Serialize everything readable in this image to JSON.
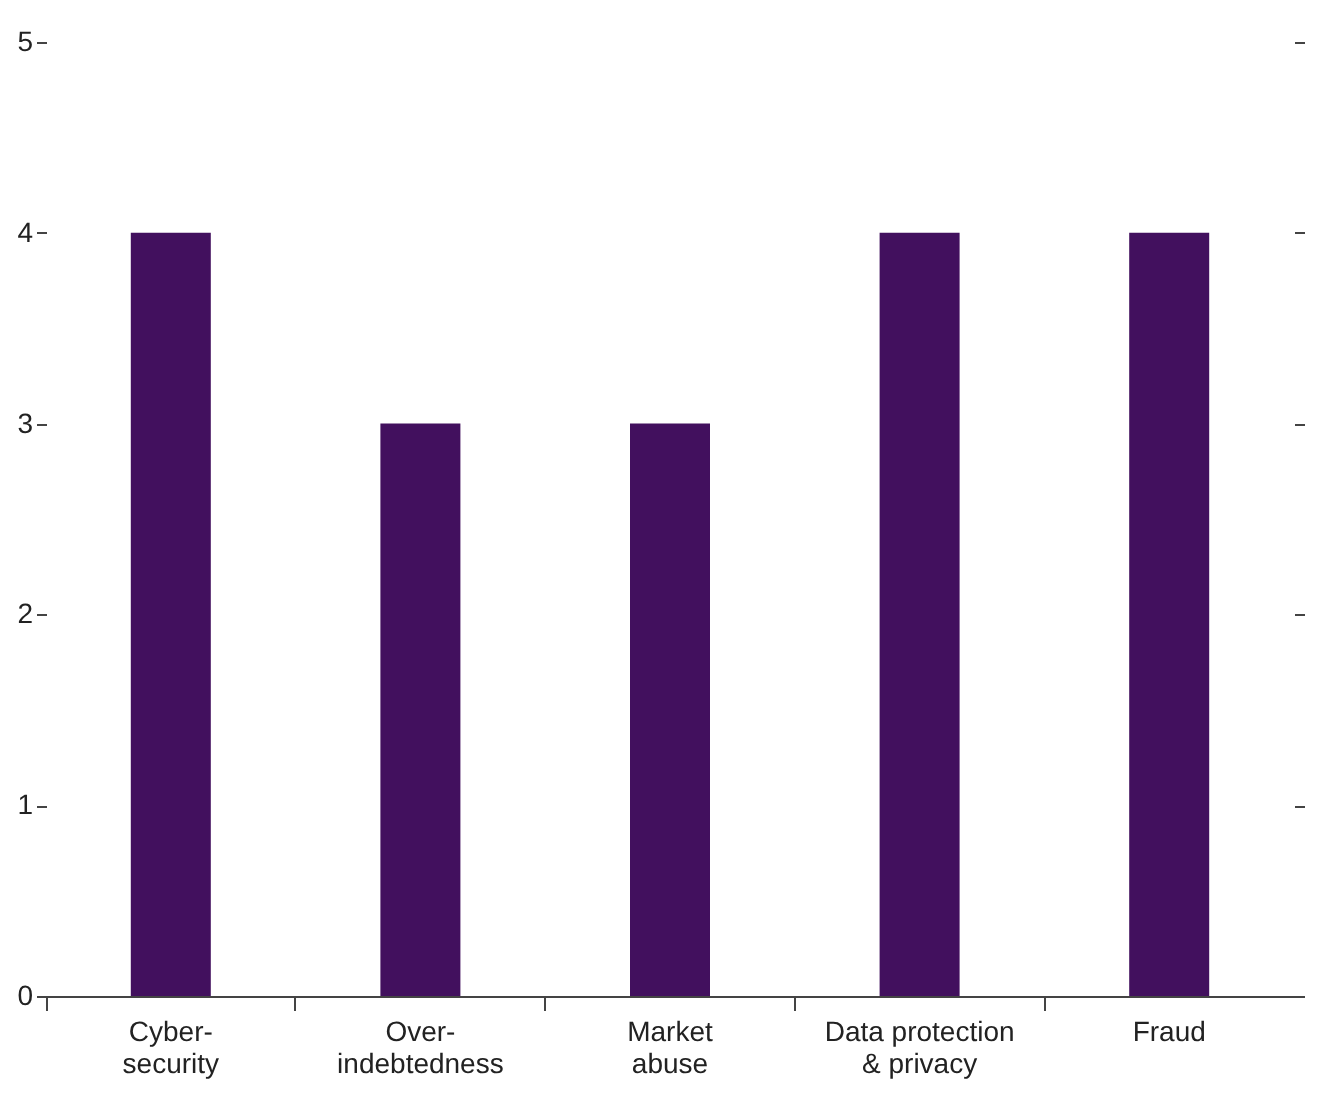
{
  "chart_data": {
    "type": "bar",
    "categories": [
      "Cyber-\nsecurity",
      "Over-\nindebtedness",
      "Market\nabuse",
      "Data protection\n& privacy",
      "Fraud"
    ],
    "values": [
      4,
      3,
      3,
      4,
      4
    ],
    "color": "#42105e",
    "ylim": [
      0,
      5
    ],
    "yticks": [
      0,
      1,
      2,
      3,
      4,
      5
    ],
    "grid": false
  }
}
